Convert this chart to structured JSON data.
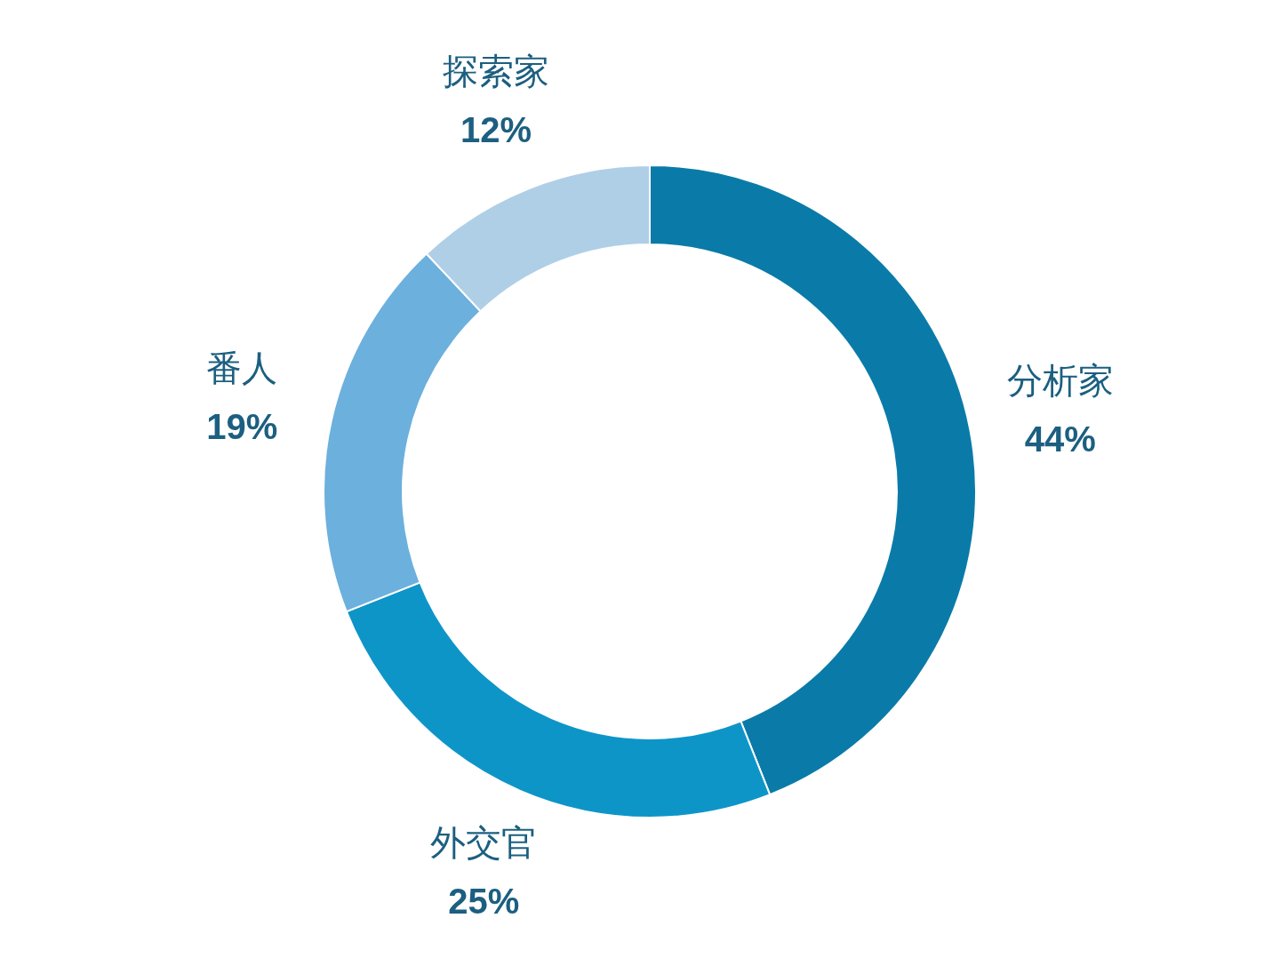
{
  "chart_data": {
    "type": "donut",
    "categories": [
      "分析家",
      "外交官",
      "番人",
      "探索家"
    ],
    "values": [
      44,
      25,
      19,
      12
    ],
    "colors": [
      "#0a7ba8",
      "#0e95c8",
      "#6cb0dd",
      "#afcfe7"
    ],
    "value_labels": [
      "44%",
      "25%",
      "19%",
      "12%"
    ]
  }
}
